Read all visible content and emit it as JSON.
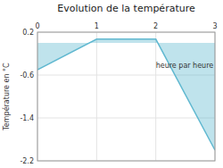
{
  "chart_data": {
    "type": "area",
    "title": "Evolution de la température",
    "y_label": "Température en °C",
    "x": [
      0,
      1,
      2,
      3
    ],
    "series": [
      {
        "color": "#60b8d0",
        "values": [
          -0.5,
          0.07,
          0.07,
          -2.0
        ]
      }
    ],
    "xlim": [
      0,
      3
    ],
    "xticks": [
      0,
      1,
      2,
      3
    ],
    "ylim": [
      -2.2,
      0.2
    ],
    "yticks": [
      0.2,
      -0.6,
      -1.4,
      -2.2
    ],
    "grid": true,
    "annotations": [
      {
        "text": "heure par heure",
        "x": 2.0,
        "y": -0.42
      }
    ]
  }
}
